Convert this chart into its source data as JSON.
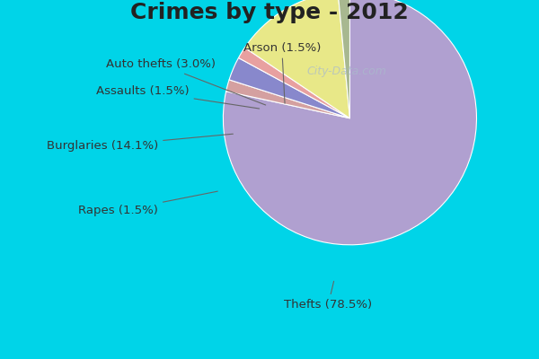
{
  "title": "Crimes by type - 2012",
  "slices": [
    {
      "label": "Thefts (78.5%)",
      "value": 78.5,
      "color": "#b0a0d0"
    },
    {
      "label": "Arson (1.5%)",
      "value": 1.5,
      "color": "#d4a0a0"
    },
    {
      "label": "Auto thefts (3.0%)",
      "value": 3.0,
      "color": "#8888cc"
    },
    {
      "label": "Assaults (1.5%)",
      "value": 1.5,
      "color": "#e8a0a0"
    },
    {
      "label": "Burglaries (14.1%)",
      "value": 14.1,
      "color": "#e8e888"
    },
    {
      "label": "Rapes (1.5%)",
      "value": 1.5,
      "color": "#a8b890"
    }
  ],
  "bg_color_top": "#00d4e8",
  "bg_color_inner": "#d8ecd8",
  "title_fontsize": 18,
  "label_fontsize": 9.5,
  "startangle": 90,
  "watermark": "City-Data.com"
}
